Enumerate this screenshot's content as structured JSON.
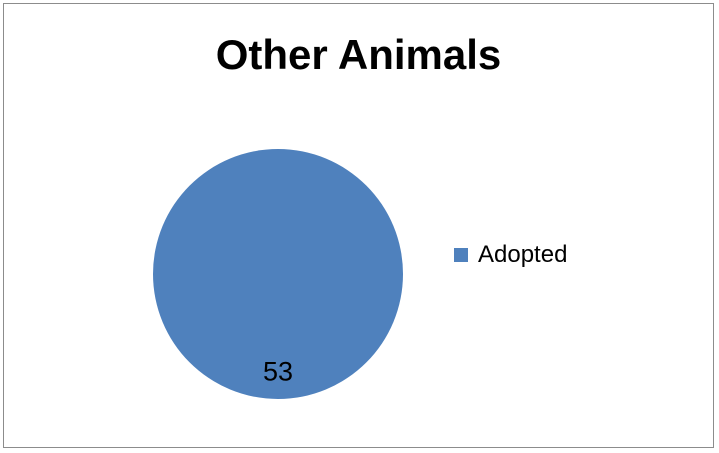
{
  "chart_data": {
    "type": "pie",
    "title": "Other Animals",
    "categories": [
      "Adopted"
    ],
    "values": [
      53
    ],
    "data_labels": [
      "53"
    ],
    "legend": {
      "position": "right",
      "entries": [
        "Adopted"
      ]
    },
    "colors": {
      "Adopted": "#4f81bd"
    }
  }
}
